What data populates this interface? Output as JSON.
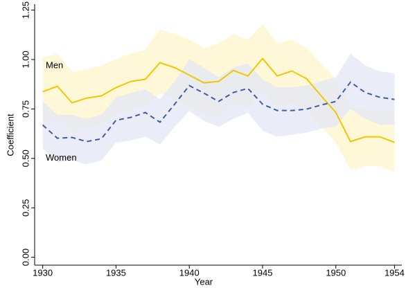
{
  "chart_data": {
    "type": "line",
    "x_label": "Year",
    "y_label": "Coefficient",
    "x": [
      1930,
      1931,
      1932,
      1933,
      1934,
      1935,
      1936,
      1937,
      1938,
      1939,
      1940,
      1941,
      1942,
      1943,
      1944,
      1945,
      1946,
      1947,
      1948,
      1949,
      1950,
      1951,
      1952,
      1953,
      1954
    ],
    "series": [
      {
        "name": "Men",
        "color": "#f0c800",
        "band_color": "#fdf6cc",
        "dashed": false,
        "values": [
          0.837,
          0.865,
          0.781,
          0.805,
          0.816,
          0.858,
          0.889,
          0.9,
          0.984,
          0.959,
          0.921,
          0.882,
          0.889,
          0.945,
          0.917,
          1.005,
          0.917,
          0.942,
          0.903,
          0.816,
          0.732,
          0.585,
          0.609,
          0.609,
          0.581
        ],
        "upper": [
          1.01,
          1.03,
          0.94,
          0.95,
          0.97,
          1.0,
          1.03,
          1.05,
          1.15,
          1.13,
          1.1,
          1.06,
          1.08,
          1.13,
          1.1,
          1.18,
          1.08,
          1.1,
          1.06,
          0.98,
          0.9,
          0.76,
          0.75,
          0.74,
          0.74
        ],
        "lower": [
          0.68,
          0.7,
          0.63,
          0.66,
          0.67,
          0.72,
          0.75,
          0.76,
          0.83,
          0.8,
          0.76,
          0.72,
          0.72,
          0.78,
          0.75,
          0.84,
          0.76,
          0.78,
          0.74,
          0.66,
          0.58,
          0.44,
          0.46,
          0.46,
          0.43
        ]
      },
      {
        "name": "Women",
        "color": "#3f5ba8",
        "band_color": "#e3e7f4",
        "dashed": true,
        "values": [
          0.669,
          0.602,
          0.606,
          0.585,
          0.599,
          0.693,
          0.707,
          0.732,
          0.683,
          0.774,
          0.868,
          0.83,
          0.788,
          0.833,
          0.854,
          0.774,
          0.742,
          0.742,
          0.749,
          0.77,
          0.788,
          0.886,
          0.833,
          0.809,
          0.798
        ],
        "upper": [
          0.79,
          0.72,
          0.72,
          0.7,
          0.72,
          0.81,
          0.83,
          0.85,
          0.8,
          0.89,
          1.0,
          0.96,
          0.91,
          0.96,
          0.98,
          0.9,
          0.86,
          0.86,
          0.87,
          0.89,
          0.91,
          1.03,
          0.97,
          0.94,
          0.93
        ],
        "lower": [
          0.55,
          0.48,
          0.49,
          0.47,
          0.49,
          0.58,
          0.59,
          0.61,
          0.57,
          0.66,
          0.74,
          0.69,
          0.66,
          0.7,
          0.73,
          0.64,
          0.61,
          0.62,
          0.63,
          0.65,
          0.66,
          0.75,
          0.7,
          0.67,
          0.67
        ]
      }
    ],
    "xlim": [
      1929.45,
      1954.5
    ],
    "ylim": [
      -0.04,
      1.28
    ],
    "xticks": [
      1930,
      1935,
      1940,
      1945,
      1950,
      1954
    ],
    "yticks": [
      {
        "value": 0,
        "label": "0.00"
      },
      {
        "value": 0.25,
        "label": "0.25"
      },
      {
        "value": 0.5,
        "label": "0.50"
      },
      {
        "value": 0.75,
        "label": "0.75"
      },
      {
        "value": 1,
        "label": "1.00"
      },
      {
        "value": 1.25,
        "label": "1.25"
      }
    ]
  }
}
